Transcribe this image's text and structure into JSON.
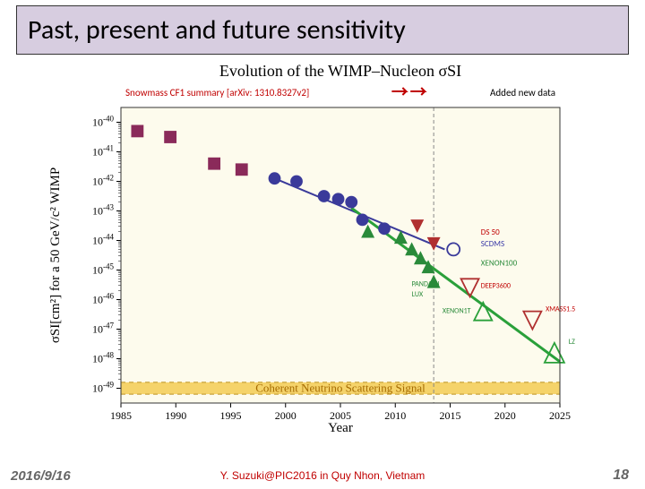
{
  "slide": {
    "title": "Past, present and future sensitivity",
    "date": "2016/9/16",
    "credit": "Y. Suzuki@PIC2016 in Quy Nhon, Vietnam",
    "page": "18"
  },
  "chart": {
    "type": "scatter-log",
    "title": "Evolution of the WIMP–Nucleon σSI",
    "title_fontsize": 18,
    "subtitle_left": "Snowmass CF1 summary [arXiv: 1310.8327v2]",
    "subtitle_right": "Added new data",
    "subtitle_color": "#c00000",
    "xlabel": "Year",
    "ylabel": "σSI[cm²] for a 50 GeV/c² WIMP",
    "label_fontsize": 15,
    "xlim": [
      1985,
      2025
    ],
    "xtick_step": 5,
    "xticks": [
      1985,
      1990,
      1995,
      2000,
      2005,
      2010,
      2015,
      2020,
      2025
    ],
    "yticks_exp": [
      -40,
      -41,
      -42,
      -43,
      -44,
      -45,
      -46,
      -47,
      -48,
      -49
    ],
    "ylim_exp": [
      -49.5,
      -39.5
    ],
    "background_color": "#fdfbed",
    "frame_color": "#333333",
    "vertical_dash_x": 2013.5,
    "vertical_dash_color": "#888888",
    "neutrino_band": {
      "label": "Coherent Neutrino Scattering Signal",
      "label_color": "#a56a00",
      "y_exp": -49.0,
      "height_exp": 0.4,
      "fill": "#f5d36a",
      "dash": "#c9a33a"
    },
    "series": [
      {
        "name": "squares-early",
        "marker": "square",
        "color": "#8a2a5a",
        "points": [
          {
            "x": 1986.5,
            "y_exp": -40.3
          },
          {
            "x": 1989.5,
            "y_exp": -40.5
          },
          {
            "x": 1993.5,
            "y_exp": -41.4
          },
          {
            "x": 1996.0,
            "y_exp": -41.6
          }
        ]
      },
      {
        "name": "circles-blue",
        "marker": "circle",
        "color": "#3a3a9a",
        "points": [
          {
            "x": 1999.0,
            "y_exp": -41.9
          },
          {
            "x": 2001.0,
            "y_exp": -42.0
          },
          {
            "x": 2003.5,
            "y_exp": -42.5
          },
          {
            "x": 2004.8,
            "y_exp": -42.6
          },
          {
            "x": 2006.0,
            "y_exp": -42.7
          },
          {
            "x": 2007.0,
            "y_exp": -43.3
          },
          {
            "x": 2009.0,
            "y_exp": -43.6
          }
        ]
      },
      {
        "name": "triangles-green",
        "marker": "triangle-up",
        "color": "#2a8a3a",
        "points": [
          {
            "x": 2007.5,
            "y_exp": -43.7
          },
          {
            "x": 2010.5,
            "y_exp": -43.9
          },
          {
            "x": 2011.5,
            "y_exp": -44.3
          },
          {
            "x": 2012.3,
            "y_exp": -44.6
          },
          {
            "x": 2013.0,
            "y_exp": -44.9
          },
          {
            "x": 2013.5,
            "y_exp": -45.4
          }
        ]
      },
      {
        "name": "triangles-down",
        "marker": "triangle-down",
        "color": "#b03030",
        "points": [
          {
            "x": 2012.0,
            "y_exp": -43.5
          },
          {
            "x": 2013.5,
            "y_exp": -44.1
          }
        ]
      }
    ],
    "trend_lines": [
      {
        "name": "blue-trend",
        "color": "#3a3a9a",
        "x1": 1999,
        "y1_exp": -41.9,
        "x2": 2014.5,
        "y2_exp": -44.3,
        "width": 2
      },
      {
        "name": "green-trend",
        "color": "#2aa03a",
        "x1": 2006,
        "y1_exp": -42.9,
        "x2": 2025,
        "y2_exp": -48.1,
        "width": 3
      }
    ],
    "open_markers": [
      {
        "name": "DS50-circle",
        "shape": "circle",
        "color": "#3a3a9a",
        "x": 2015.3,
        "y_exp": -44.3,
        "r": 7
      },
      {
        "name": "DEEP3600-tri",
        "shape": "triangle-down",
        "color": "#b03030",
        "x": 2016.8,
        "y_exp": -45.6,
        "size": 10
      },
      {
        "name": "XENON1T-tri",
        "shape": "triangle-up",
        "color": "#2aa03a",
        "x": 2018.0,
        "y_exp": -46.4,
        "size": 10
      },
      {
        "name": "XMASS1.5-tri",
        "shape": "triangle-down",
        "color": "#b03030",
        "x": 2022.5,
        "y_exp": -46.7,
        "size": 10
      },
      {
        "name": "LZ-tri",
        "shape": "triangle-up",
        "color": "#2aa03a",
        "x": 2024.5,
        "y_exp": -47.8,
        "size": 11
      }
    ],
    "annotations": [
      {
        "text": "DS 50",
        "color": "#c00000",
        "x": 2017.8,
        "y_exp": -43.8,
        "fontsize": 9
      },
      {
        "text": "SCDMS",
        "color": "#3a3aa8",
        "x": 2017.8,
        "y_exp": -44.2,
        "fontsize": 9
      },
      {
        "text": "XENON100",
        "color": "#2a8a3a",
        "x": 2017.8,
        "y_exp": -44.85,
        "fontsize": 9
      },
      {
        "text": "PANDAXII",
        "color": "#2a8a3a",
        "x": 2011.5,
        "y_exp": -45.55,
        "fontsize": 8
      },
      {
        "text": "LUX",
        "color": "#2a8a3a",
        "x": 2011.5,
        "y_exp": -45.9,
        "fontsize": 8
      },
      {
        "text": "DEEP3600",
        "color": "#c00000",
        "x": 2017.8,
        "y_exp": -45.6,
        "fontsize": 8
      },
      {
        "text": "XENON1T",
        "color": "#2a8a3a",
        "x": 2014.3,
        "y_exp": -46.45,
        "fontsize": 8
      },
      {
        "text": "XMASS1.5",
        "color": "#c00000",
        "x": 2023.7,
        "y_exp": -46.4,
        "fontsize": 8
      },
      {
        "text": "LZ",
        "color": "#2a8a3a",
        "x": 2025.8,
        "y_exp": -47.5,
        "fontsize": 8
      }
    ],
    "red_arrows": [
      {
        "x": 2010.5,
        "y_exp": -40.4
      },
      {
        "x": 2012.2,
        "y_exp": -40.4
      }
    ]
  }
}
